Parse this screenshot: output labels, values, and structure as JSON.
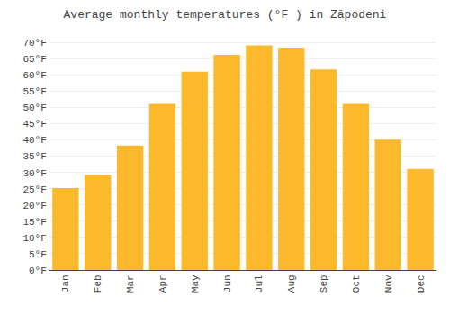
{
  "chart_data": {
    "type": "bar",
    "title": "Average monthly temperatures (°F ) in Zăpodeni",
    "categories": [
      "Jan",
      "Feb",
      "Mar",
      "Apr",
      "May",
      "Jun",
      "Jul",
      "Aug",
      "Sep",
      "Oct",
      "Nov",
      "Dec"
    ],
    "values": [
      25.2,
      29.3,
      38.3,
      51.1,
      61.0,
      66.2,
      69.1,
      68.4,
      61.7,
      51.1,
      40.1,
      31.1
    ],
    "color": "#FDB92C",
    "ylim": [
      0,
      72
    ],
    "yticks": [
      {
        "value": 0,
        "label": "0°F"
      },
      {
        "value": 5,
        "label": "5°F"
      },
      {
        "value": 10,
        "label": "10°F"
      },
      {
        "value": 15,
        "label": "15°F"
      },
      {
        "value": 20,
        "label": "20°F"
      },
      {
        "value": 25,
        "label": "25°F"
      },
      {
        "value": 30,
        "label": "30°F"
      },
      {
        "value": 35,
        "label": "35°F"
      },
      {
        "value": 40,
        "label": "40°F"
      },
      {
        "value": 45,
        "label": "45°F"
      },
      {
        "value": 50,
        "label": "50°F"
      },
      {
        "value": 55,
        "label": "55°F"
      },
      {
        "value": 60,
        "label": "60°F"
      },
      {
        "value": 65,
        "label": "65°F"
      },
      {
        "value": 70,
        "label": "70°F"
      }
    ],
    "grid": true
  }
}
